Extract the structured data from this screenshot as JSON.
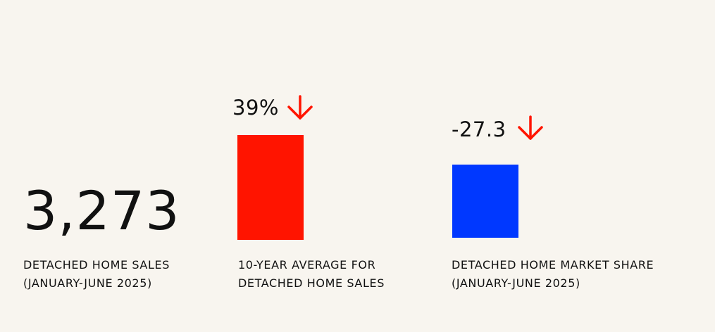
{
  "stat1": {
    "number": "3,273",
    "label_line1": "DETACHED HOME SALES",
    "label_line2": "(JANUARY-JUNE 2025)"
  },
  "chart_data": [
    {
      "type": "bar",
      "categories": [
        "10-YEAR AVERAGE FOR DETACHED HOME SALES"
      ],
      "values": [
        39
      ],
      "value_label": "39%",
      "direction": "down",
      "color": "#ff1400",
      "label_line1": "10-YEAR AVERAGE FOR",
      "label_line2": "DETACHED HOME SALES"
    },
    {
      "type": "bar",
      "categories": [
        "DETACHED HOME MARKET SHARE (JANUARY-JUNE 2025)"
      ],
      "values": [
        -27.3
      ],
      "value_label": "-27.3",
      "direction": "down",
      "color": "#0038ff",
      "label_line1": "DETACHED HOME MARKET SHARE",
      "label_line2": "(JANUARY-JUNE 2025)"
    }
  ],
  "icons": {
    "arrow": "arrow-down-icon",
    "arrow_color": "#ff1400"
  }
}
